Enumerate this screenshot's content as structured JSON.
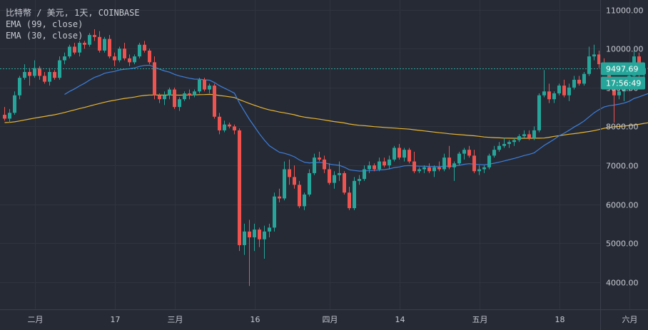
{
  "legend": {
    "title": "比特幣 / 美元, 1天, COINBASE",
    "ema1": "EMA (99, close)",
    "ema2": "EMA (30, close)"
  },
  "price_tag": {
    "value": "9497.69",
    "countdown": "17:56:49"
  },
  "colors": {
    "background": "#262a35",
    "grid": "#30343f",
    "up": "#26a69a",
    "down": "#ef5350",
    "ema99": "#e8b634",
    "ema30": "#3d7fdc",
    "price_line": "#26a69a",
    "axis_text": "#c7cad1",
    "axis_border": "#3a3f4b"
  },
  "chart_data": {
    "type": "candlestick",
    "y_ticks": [
      "11000.00",
      "10000.00",
      "9000.00",
      "8000.00",
      "7000.00",
      "6000.00",
      "5000.00",
      "4000.00"
    ],
    "ylim": [
      3300,
      11250
    ],
    "x_ticks": [
      {
        "day": 6,
        "label": "二月"
      },
      {
        "day": 22,
        "label": "17"
      },
      {
        "day": 34,
        "label": "三月"
      },
      {
        "day": 50,
        "label": "16"
      },
      {
        "day": 65,
        "label": "四月"
      },
      {
        "day": 79,
        "label": "14"
      },
      {
        "day": 95,
        "label": "五月"
      },
      {
        "day": 111,
        "label": "18"
      },
      {
        "day": 125,
        "label": "六月"
      }
    ],
    "candles": [
      [
        8300,
        8500,
        8150,
        8200
      ],
      [
        8200,
        8450,
        8100,
        8350
      ],
      [
        8350,
        8900,
        8300,
        8800
      ],
      [
        8800,
        9300,
        8700,
        9250
      ],
      [
        9250,
        9600,
        9200,
        9400
      ],
      [
        9400,
        9500,
        9050,
        9300
      ],
      [
        9300,
        9700,
        9250,
        9500
      ],
      [
        9500,
        9550,
        9200,
        9300
      ],
      [
        9300,
        9400,
        9100,
        9150
      ],
      [
        9150,
        9500,
        9050,
        9400
      ],
      [
        9400,
        9450,
        9200,
        9250
      ],
      [
        9250,
        9800,
        9200,
        9700
      ],
      [
        9700,
        9900,
        9600,
        9800
      ],
      [
        9800,
        10100,
        9750,
        10050
      ],
      [
        10050,
        10150,
        9850,
        9900
      ],
      [
        9900,
        10200,
        9800,
        10150
      ],
      [
        10150,
        10200,
        10000,
        10100
      ],
      [
        10100,
        10400,
        10050,
        10350
      ],
      [
        10350,
        10500,
        10200,
        10300
      ],
      [
        10300,
        10450,
        9900,
        9950
      ],
      [
        9950,
        10300,
        9900,
        10250
      ],
      [
        10250,
        10350,
        9750,
        9800
      ],
      [
        9800,
        9900,
        9550,
        9700
      ],
      [
        9700,
        10050,
        9650,
        10000
      ],
      [
        10000,
        10150,
        9700,
        9750
      ],
      [
        9750,
        9850,
        9550,
        9650
      ],
      [
        9650,
        9850,
        9600,
        9800
      ],
      [
        9800,
        10150,
        9750,
        10100
      ],
      [
        10100,
        10200,
        9900,
        9950
      ],
      [
        9950,
        10000,
        9600,
        9650
      ],
      [
        9650,
        9800,
        8700,
        8800
      ],
      [
        8800,
        8850,
        8600,
        8700
      ],
      [
        8700,
        8900,
        8550,
        8800
      ],
      [
        8800,
        9000,
        8700,
        8950
      ],
      [
        8950,
        9000,
        8450,
        8500
      ],
      [
        8500,
        8750,
        8400,
        8700
      ],
      [
        8700,
        8900,
        8650,
        8850
      ],
      [
        8850,
        8950,
        8700,
        8800
      ],
      [
        8800,
        8950,
        8750,
        8900
      ],
      [
        8900,
        9250,
        8850,
        9200
      ],
      [
        9200,
        9250,
        8900,
        8950
      ],
      [
        8950,
        9100,
        8850,
        9050
      ],
      [
        9050,
        9100,
        8200,
        8250
      ],
      [
        8250,
        8350,
        7800,
        7900
      ],
      [
        7900,
        8150,
        7850,
        8050
      ],
      [
        8050,
        8100,
        7950,
        8000
      ],
      [
        8000,
        8050,
        7800,
        7900
      ],
      [
        7900,
        7950,
        4800,
        4950
      ],
      [
        4950,
        5500,
        4700,
        5300
      ],
      [
        5300,
        5600,
        3900,
        5150
      ],
      [
        5150,
        5500,
        4800,
        5350
      ],
      [
        5350,
        5400,
        4900,
        5100
      ],
      [
        5100,
        5450,
        4600,
        5300
      ],
      [
        5300,
        5500,
        5150,
        5400
      ],
      [
        5400,
        6300,
        5300,
        6200
      ],
      [
        6200,
        6400,
        6050,
        6150
      ],
      [
        6150,
        7100,
        6100,
        6900
      ],
      [
        6900,
        7150,
        6500,
        6700
      ],
      [
        6700,
        7000,
        6400,
        6500
      ],
      [
        6500,
        6600,
        5900,
        5950
      ],
      [
        5950,
        6300,
        5850,
        6250
      ],
      [
        6250,
        6900,
        6200,
        6800
      ],
      [
        6800,
        7300,
        6750,
        7200
      ],
      [
        7200,
        7350,
        7100,
        7150
      ],
      [
        7150,
        7250,
        6800,
        6900
      ],
      [
        6900,
        7050,
        6500,
        6550
      ],
      [
        6550,
        6850,
        6400,
        6750
      ],
      [
        6750,
        7100,
        6600,
        6800
      ],
      [
        6800,
        6850,
        6250,
        6300
      ],
      [
        6300,
        6450,
        5850,
        5900
      ],
      [
        5900,
        6700,
        5850,
        6600
      ],
      [
        6600,
        6750,
        6500,
        6650
      ],
      [
        6650,
        7000,
        6600,
        6900
      ],
      [
        6900,
        7100,
        6800,
        7000
      ],
      [
        7000,
        7050,
        6850,
        6900
      ],
      [
        6900,
        7200,
        6850,
        7100
      ],
      [
        7100,
        7200,
        6950,
        7000
      ],
      [
        7000,
        7250,
        6900,
        7150
      ],
      [
        7150,
        7500,
        7100,
        7450
      ],
      [
        7450,
        7550,
        7150,
        7200
      ],
      [
        7200,
        7450,
        7100,
        7400
      ],
      [
        7400,
        7450,
        7050,
        7100
      ],
      [
        7100,
        7350,
        6800,
        6850
      ],
      [
        6850,
        6950,
        6800,
        6900
      ],
      [
        6900,
        7000,
        6800,
        6950
      ],
      [
        6950,
        7050,
        6800,
        6850
      ],
      [
        6850,
        7000,
        6700,
        6950
      ],
      [
        6950,
        7100,
        6850,
        6900
      ],
      [
        6900,
        7300,
        6850,
        7200
      ],
      [
        7200,
        7500,
        6900,
        6950
      ],
      [
        6950,
        7100,
        6600,
        7050
      ],
      [
        7050,
        7350,
        7000,
        7300
      ],
      [
        7300,
        7450,
        7150,
        7400
      ],
      [
        7400,
        7500,
        7200,
        7250
      ],
      [
        7250,
        7400,
        6800,
        6850
      ],
      [
        6850,
        7000,
        6750,
        6900
      ],
      [
        6900,
        7000,
        6800,
        6950
      ],
      [
        6950,
        7300,
        6900,
        7250
      ],
      [
        7250,
        7500,
        7200,
        7400
      ],
      [
        7400,
        7600,
        7350,
        7500
      ],
      [
        7500,
        7700,
        7450,
        7550
      ],
      [
        7550,
        7650,
        7450,
        7600
      ],
      [
        7600,
        7700,
        7500,
        7650
      ],
      [
        7650,
        7800,
        7600,
        7750
      ],
      [
        7750,
        7900,
        7700,
        7800
      ],
      [
        7800,
        7900,
        7650,
        7700
      ],
      [
        7700,
        8000,
        7650,
        7900
      ],
      [
        7900,
        8850,
        7850,
        8800
      ],
      [
        8800,
        9450,
        8750,
        8900
      ],
      [
        8900,
        9100,
        8600,
        8700
      ],
      [
        8700,
        8900,
        8600,
        8850
      ],
      [
        8850,
        9100,
        8800,
        9050
      ],
      [
        9050,
        9200,
        8750,
        8800
      ],
      [
        8800,
        9100,
        8650,
        9000
      ],
      [
        9000,
        9300,
        8950,
        9200
      ],
      [
        9200,
        9300,
        9050,
        9100
      ],
      [
        9100,
        9400,
        9050,
        9350
      ],
      [
        9350,
        10050,
        9300,
        9800
      ],
      [
        9800,
        10100,
        9700,
        9850
      ],
      [
        9850,
        9950,
        9500,
        9600
      ],
      [
        9600,
        9750,
        9400,
        9500
      ],
      [
        9500,
        9600,
        8900,
        9000
      ],
      [
        9000,
        9150,
        8100,
        8800
      ],
      [
        8800,
        9050,
        8700,
        8900
      ],
      [
        8900,
        9250,
        8650,
        9000
      ],
      [
        9000,
        9350,
        8900,
        9300
      ],
      [
        9300,
        9950,
        9250,
        9800
      ],
      [
        9800,
        9900,
        9200,
        9350
      ],
      [
        9350,
        9600,
        9250,
        9500
      ],
      [
        9500,
        9650,
        9300,
        9497.69
      ]
    ],
    "ema99": [
      8100,
      8104,
      8120,
      8142,
      8168,
      8190,
      8215,
      8237,
      8257,
      8280,
      8300,
      8330,
      8360,
      8395,
      8425,
      8460,
      8490,
      8525,
      8560,
      8590,
      8623,
      8650,
      8672,
      8698,
      8720,
      8737,
      8756,
      8780,
      8798,
      8808,
      8810,
      8808,
      8808,
      8810,
      8808,
      8805,
      8808,
      8808,
      8810,
      8818,
      8820,
      8825,
      8815,
      8795,
      8780,
      8762,
      8745,
      8690,
      8640,
      8590,
      8545,
      8500,
      8460,
      8425,
      8400,
      8370,
      8350,
      8325,
      8300,
      8265,
      8240,
      8220,
      8205,
      8188,
      8168,
      8145,
      8125,
      8108,
      8090,
      8062,
      8045,
      8030,
      8020,
      8008,
      7995,
      7985,
      7975,
      7965,
      7958,
      7948,
      7940,
      7930,
      7915,
      7900,
      7885,
      7870,
      7855,
      7840,
      7828,
      7812,
      7800,
      7790,
      7780,
      7770,
      7760,
      7745,
      7730,
      7720,
      7712,
      7708,
      7700,
      7698,
      7696,
      7696,
      7696,
      7697,
      7698,
      7698,
      7702,
      7722,
      7745,
      7762,
      7782,
      7800,
      7815,
      7832,
      7852,
      7870,
      7892,
      7922,
      7952,
      7975,
      7993,
      8000,
      8010,
      8025,
      8038,
      8055,
      8080,
      8098,
      8115,
      8135
    ]
  }
}
